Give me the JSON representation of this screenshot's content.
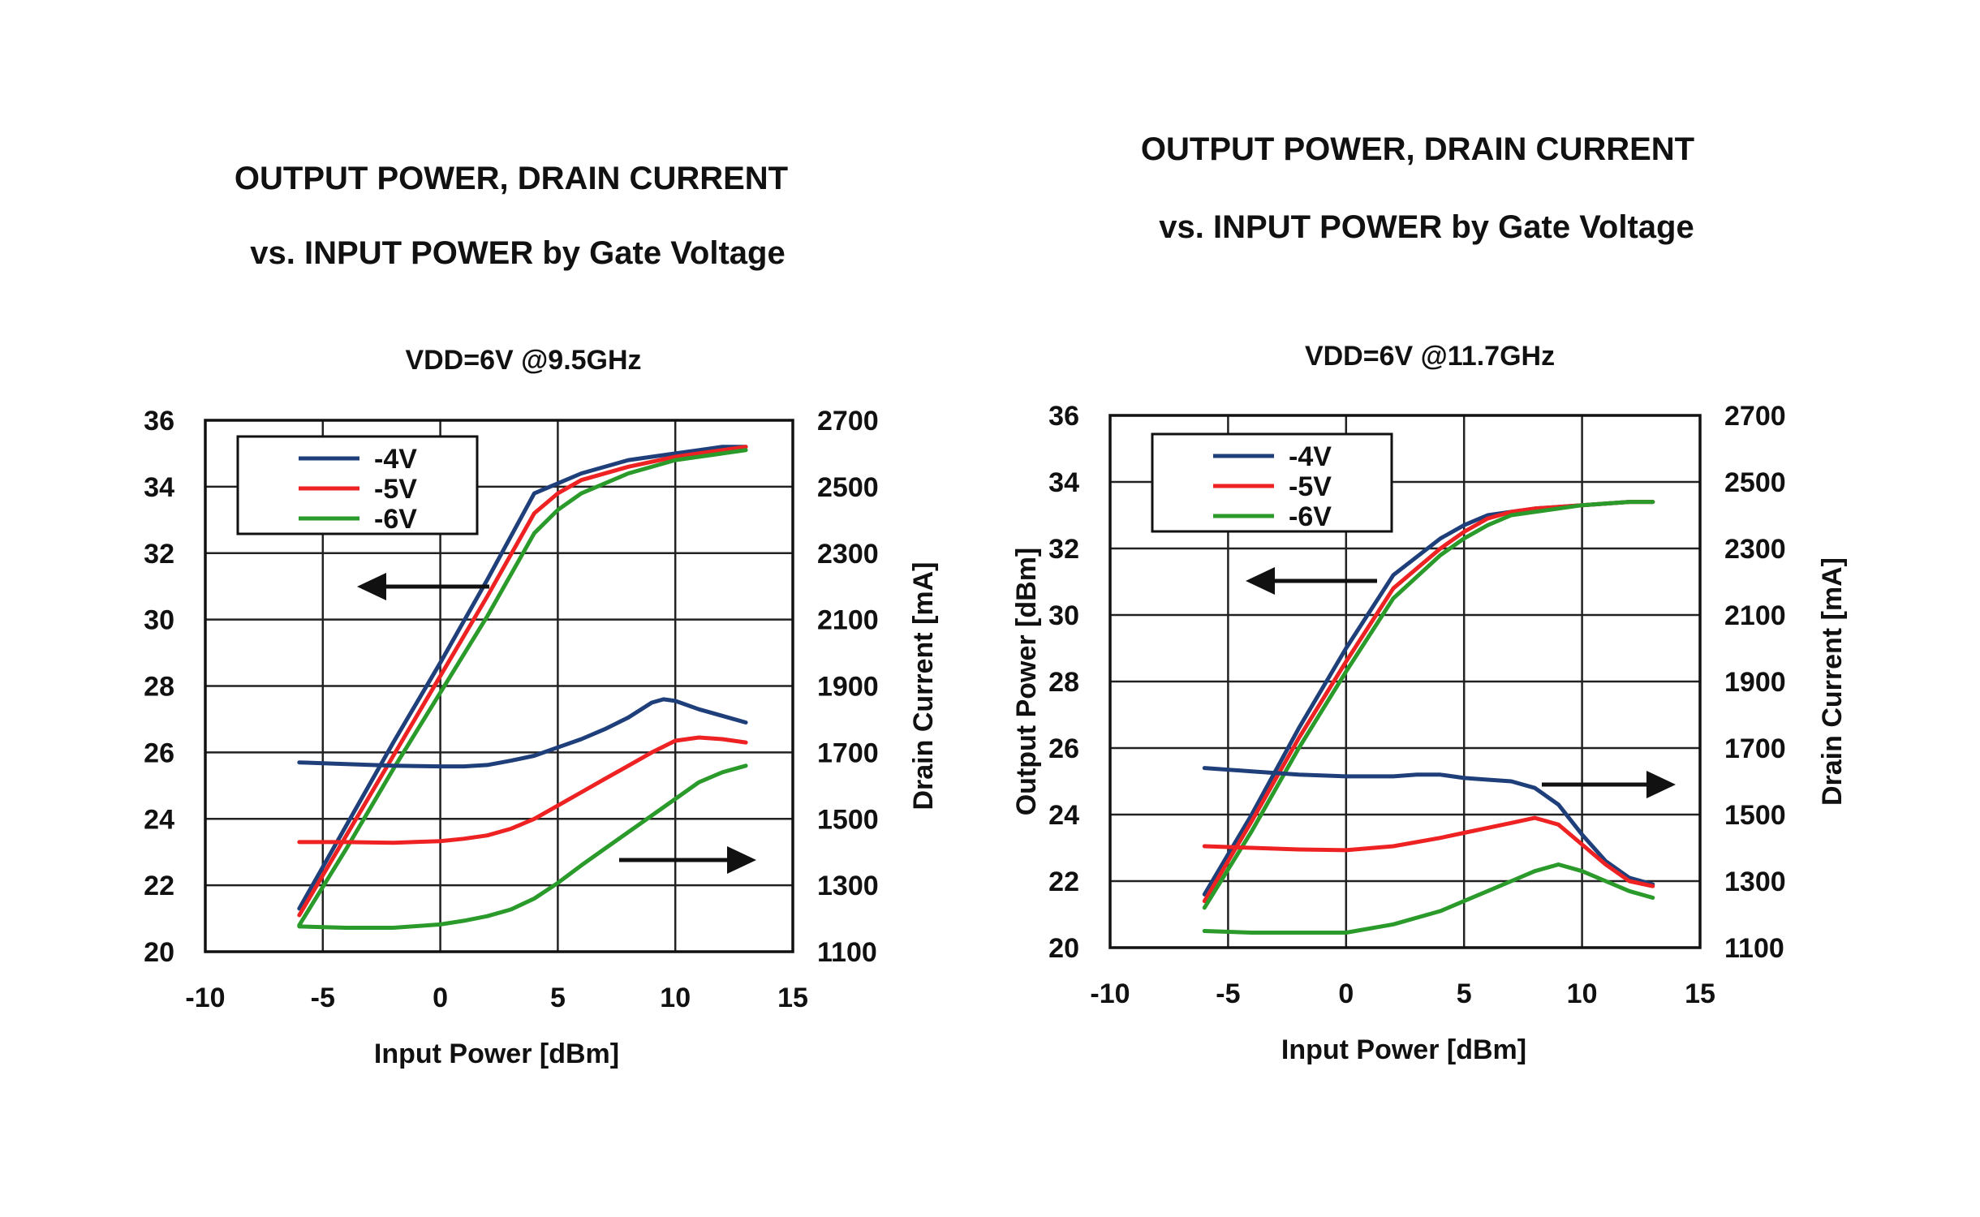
{
  "chart_data": [
    {
      "type": "line",
      "title_lines": [
        "OUTPUT POWER, DRAIN CURRENT",
        "vs. INPUT POWER  by Gate Voltage"
      ],
      "subtitle": "VDD=6V @9.5GHz",
      "xlabel": "Input Power [dBm]",
      "ylabel_left": "",
      "ylabel_right": "Drain Current [mA]",
      "xlim": [
        -10,
        15
      ],
      "ylim_left": [
        20,
        36
      ],
      "ylim_right": [
        1100,
        2700
      ],
      "x_ticks": [
        "-10",
        "-5",
        "0",
        "5",
        "10",
        "15"
      ],
      "y_left_ticks": [
        "20",
        "22",
        "24",
        "26",
        "28",
        "30",
        "32",
        "34",
        "36"
      ],
      "y_right_ticks": [
        "1100",
        "1300",
        "1500",
        "1700",
        "1900",
        "2100",
        "2300",
        "2500",
        "2700"
      ],
      "grid": true,
      "legend_position": "top-left",
      "legend": [
        {
          "label": "-4V",
          "color": "#1f3f7a"
        },
        {
          "label": "-5V",
          "color": "#ee2222"
        },
        {
          "label": "-6V",
          "color": "#2a9a2a"
        }
      ],
      "arrows": [
        {
          "axis": "left",
          "direction": "left"
        },
        {
          "axis": "right",
          "direction": "right"
        }
      ],
      "series": [
        {
          "name": "-4V",
          "axis": "left",
          "color": "#1f3f7a",
          "x": [
            -6,
            -4,
            -2,
            0,
            2,
            4,
            5,
            6,
            8,
            10,
            11,
            12,
            13
          ],
          "y": [
            21.3,
            23.8,
            26.3,
            28.7,
            31.2,
            33.8,
            34.1,
            34.4,
            34.8,
            35.0,
            35.1,
            35.2,
            35.2
          ]
        },
        {
          "name": "-5V",
          "axis": "left",
          "color": "#ee2222",
          "x": [
            -6,
            -4,
            -2,
            0,
            2,
            4,
            5,
            6,
            8,
            10,
            11,
            12,
            13
          ],
          "y": [
            21.1,
            23.5,
            25.9,
            28.3,
            30.7,
            33.2,
            33.8,
            34.2,
            34.6,
            34.9,
            35.0,
            35.1,
            35.2
          ]
        },
        {
          "name": "-6V",
          "axis": "left",
          "color": "#2a9a2a",
          "x": [
            -6,
            -4,
            -2,
            0,
            2,
            4,
            5,
            6,
            8,
            10,
            11,
            12,
            13
          ],
          "y": [
            20.8,
            23.1,
            25.5,
            27.8,
            30.1,
            32.6,
            33.3,
            33.8,
            34.4,
            34.8,
            34.9,
            35.0,
            35.1
          ]
        },
        {
          "name": "-4V",
          "axis": "right",
          "color": "#1f3f7a",
          "x": [
            -6,
            -4,
            -2,
            0,
            1,
            2,
            3,
            4,
            5,
            6,
            7,
            8,
            9,
            9.5,
            10,
            11,
            12,
            13
          ],
          "y": [
            1670,
            1665,
            1660,
            1658,
            1658,
            1662,
            1675,
            1690,
            1715,
            1740,
            1770,
            1805,
            1850,
            1860,
            1855,
            1830,
            1810,
            1790
          ]
        },
        {
          "name": "-5V",
          "axis": "right",
          "color": "#ee2222",
          "x": [
            -6,
            -4,
            -2,
            0,
            1,
            2,
            3,
            4,
            5,
            6,
            7,
            8,
            9,
            10,
            11,
            12,
            13
          ],
          "y": [
            1430,
            1430,
            1428,
            1433,
            1440,
            1450,
            1470,
            1500,
            1540,
            1580,
            1620,
            1660,
            1700,
            1735,
            1745,
            1740,
            1730
          ]
        },
        {
          "name": "-6V",
          "axis": "right",
          "color": "#2a9a2a",
          "x": [
            -6,
            -4,
            -2,
            0,
            1,
            2,
            3,
            4,
            5,
            6,
            7,
            8,
            9,
            10,
            11,
            12,
            13
          ],
          "y": [
            1176,
            1172,
            1172,
            1182,
            1193,
            1207,
            1227,
            1260,
            1307,
            1360,
            1410,
            1460,
            1510,
            1560,
            1610,
            1640,
            1660
          ]
        }
      ]
    },
    {
      "type": "line",
      "title_lines": [
        "OUTPUT POWER, DRAIN CURRENT",
        "vs. INPUT POWER  by Gate Voltage"
      ],
      "subtitle": "VDD=6V @11.7GHz",
      "xlabel": "Input Power [dBm]",
      "ylabel_left": "Output Power [dBm]",
      "ylabel_right": "Drain Current [mA]",
      "xlim": [
        -10,
        15
      ],
      "ylim_left": [
        20,
        36
      ],
      "ylim_right": [
        1100,
        2700
      ],
      "x_ticks": [
        "-10",
        "-5",
        "0",
        "5",
        "10",
        "15"
      ],
      "y_left_ticks": [
        "20",
        "22",
        "24",
        "26",
        "28",
        "30",
        "32",
        "34",
        "36"
      ],
      "y_right_ticks": [
        "1100",
        "1300",
        "1500",
        "1700",
        "1900",
        "2100",
        "2300",
        "2500",
        "2700"
      ],
      "grid": true,
      "legend_position": "top-left",
      "legend": [
        {
          "label": "-4V",
          "color": "#1f3f7a"
        },
        {
          "label": "-5V",
          "color": "#ee2222"
        },
        {
          "label": "-6V",
          "color": "#2a9a2a"
        }
      ],
      "arrows": [
        {
          "axis": "left",
          "direction": "left"
        },
        {
          "axis": "right",
          "direction": "right"
        }
      ],
      "series": [
        {
          "name": "-4V",
          "axis": "left",
          "color": "#1f3f7a",
          "x": [
            -6,
            -4,
            -2,
            0,
            2,
            4,
            5,
            6,
            7,
            8,
            10,
            12,
            13
          ],
          "y": [
            21.6,
            24.0,
            26.6,
            29.0,
            31.2,
            32.3,
            32.7,
            33.0,
            33.1,
            33.2,
            33.3,
            33.4,
            33.4
          ]
        },
        {
          "name": "-5V",
          "axis": "left",
          "color": "#ee2222",
          "x": [
            -6,
            -4,
            -2,
            0,
            2,
            4,
            5,
            6,
            7,
            8,
            10,
            12,
            13
          ],
          "y": [
            21.4,
            23.8,
            26.3,
            28.6,
            30.8,
            32.0,
            32.5,
            32.9,
            33.1,
            33.2,
            33.3,
            33.4,
            33.4
          ]
        },
        {
          "name": "-6V",
          "axis": "left",
          "color": "#2a9a2a",
          "x": [
            -6,
            -4,
            -2,
            0,
            2,
            4,
            5,
            6,
            7,
            8,
            10,
            12,
            13
          ],
          "y": [
            21.2,
            23.5,
            26.0,
            28.3,
            30.5,
            31.8,
            32.3,
            32.7,
            33.0,
            33.1,
            33.3,
            33.4,
            33.4
          ]
        },
        {
          "name": "-4V",
          "axis": "right",
          "color": "#1f3f7a",
          "x": [
            -6,
            -4,
            -2,
            0,
            2,
            3,
            4,
            5,
            6,
            7,
            8,
            9,
            10,
            11,
            12,
            13
          ],
          "y": [
            1640,
            1630,
            1620,
            1615,
            1615,
            1620,
            1620,
            1610,
            1605,
            1600,
            1580,
            1530,
            1440,
            1360,
            1310,
            1290
          ]
        },
        {
          "name": "-5V",
          "axis": "right",
          "color": "#ee2222",
          "x": [
            -6,
            -4,
            -2,
            0,
            2,
            4,
            5,
            6,
            7,
            8,
            9,
            10,
            11,
            12,
            13
          ],
          "y": [
            1405,
            1400,
            1395,
            1393,
            1405,
            1430,
            1445,
            1460,
            1475,
            1490,
            1470,
            1410,
            1350,
            1300,
            1285
          ]
        },
        {
          "name": "-6V",
          "axis": "right",
          "color": "#2a9a2a",
          "x": [
            -6,
            -4,
            -2,
            0,
            2,
            4,
            5,
            6,
            7,
            8,
            9,
            10,
            11,
            12,
            13
          ],
          "y": [
            1150,
            1145,
            1145,
            1145,
            1170,
            1210,
            1240,
            1270,
            1300,
            1330,
            1350,
            1330,
            1300,
            1270,
            1250
          ]
        }
      ]
    }
  ]
}
